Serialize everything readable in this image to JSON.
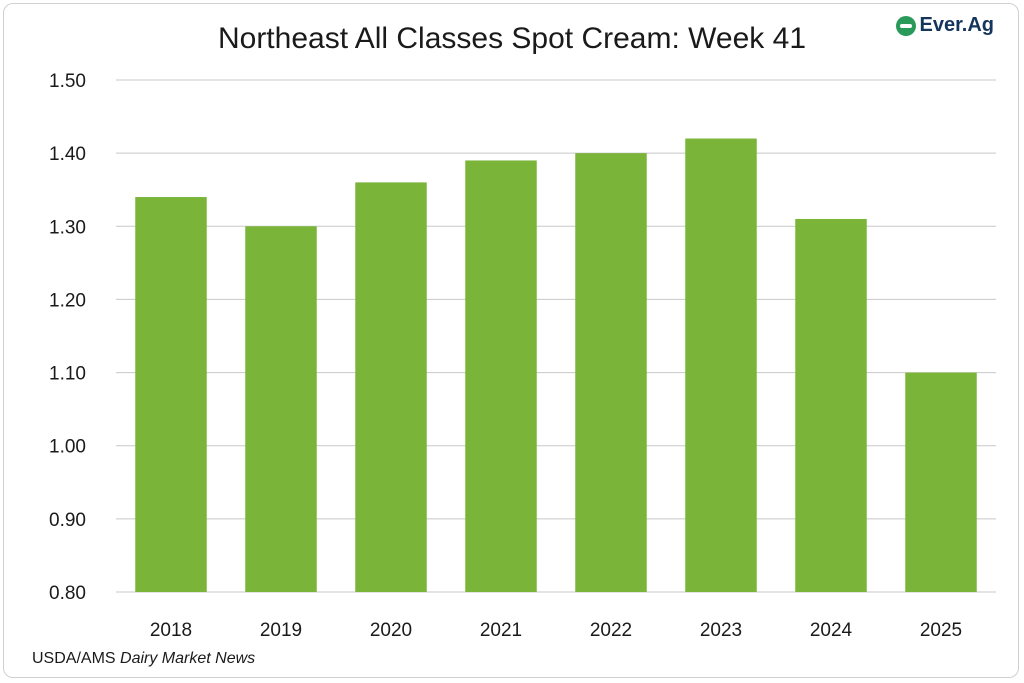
{
  "brand": {
    "logo_text": "Ever.Ag",
    "accent": "#2a9a5a",
    "text_color": "#14355c"
  },
  "source": {
    "prefix": "USDA/AMS ",
    "italic": "Dairy Market News"
  },
  "chart_data": {
    "type": "bar",
    "title": "Northeast All Classes Spot Cream: Week 41",
    "xlabel": "",
    "ylabel": "",
    "categories": [
      "2018",
      "2019",
      "2020",
      "2021",
      "2022",
      "2023",
      "2024",
      "2025"
    ],
    "values": [
      1.34,
      1.3,
      1.36,
      1.39,
      1.4,
      1.42,
      1.31,
      1.1
    ],
    "ylim": [
      0.8,
      1.5
    ],
    "yticks": [
      "0.80",
      "0.90",
      "1.00",
      "1.10",
      "1.20",
      "1.30",
      "1.40",
      "1.50"
    ],
    "grid": true,
    "bar_color": "#7ab53a",
    "grid_color": "#c8c8c8",
    "legend": "none"
  }
}
